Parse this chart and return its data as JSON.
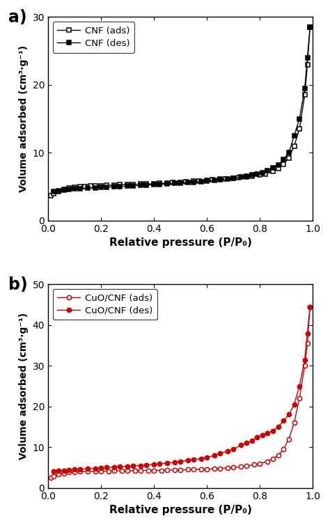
{
  "panel_a_label": "a)",
  "panel_b_label": "b)",
  "cnf_ads_x": [
    0.01,
    0.02,
    0.04,
    0.06,
    0.08,
    0.1,
    0.12,
    0.14,
    0.16,
    0.18,
    0.2,
    0.22,
    0.25,
    0.27,
    0.3,
    0.32,
    0.35,
    0.37,
    0.4,
    0.42,
    0.45,
    0.47,
    0.5,
    0.52,
    0.55,
    0.57,
    0.6,
    0.62,
    0.65,
    0.67,
    0.7,
    0.72,
    0.75,
    0.77,
    0.8,
    0.82,
    0.85,
    0.87,
    0.89,
    0.91,
    0.93,
    0.95,
    0.97,
    0.98,
    0.99
  ],
  "cnf_ads_y": [
    3.7,
    4.0,
    4.3,
    4.6,
    4.8,
    4.9,
    5.0,
    5.0,
    5.1,
    5.1,
    5.1,
    5.2,
    5.2,
    5.3,
    5.3,
    5.3,
    5.4,
    5.4,
    5.4,
    5.5,
    5.5,
    5.6,
    5.6,
    5.7,
    5.8,
    5.8,
    5.9,
    6.0,
    6.1,
    6.1,
    6.2,
    6.3,
    6.4,
    6.5,
    6.7,
    6.9,
    7.3,
    7.7,
    8.3,
    9.2,
    11.0,
    13.5,
    18.5,
    23.0,
    28.5
  ],
  "cnf_des_x": [
    0.99,
    0.98,
    0.97,
    0.95,
    0.93,
    0.91,
    0.89,
    0.87,
    0.85,
    0.83,
    0.81,
    0.79,
    0.77,
    0.75,
    0.73,
    0.7,
    0.68,
    0.65,
    0.63,
    0.6,
    0.58,
    0.55,
    0.53,
    0.5,
    0.48,
    0.45,
    0.42,
    0.4,
    0.37,
    0.35,
    0.32,
    0.3,
    0.27,
    0.25,
    0.22,
    0.2,
    0.18,
    0.15,
    0.12,
    0.1,
    0.08,
    0.06,
    0.04,
    0.02
  ],
  "cnf_des_y": [
    28.5,
    24.0,
    19.5,
    15.0,
    12.5,
    10.0,
    9.0,
    8.2,
    7.8,
    7.4,
    7.1,
    6.9,
    6.7,
    6.5,
    6.4,
    6.2,
    6.1,
    6.0,
    5.9,
    5.8,
    5.7,
    5.6,
    5.6,
    5.5,
    5.5,
    5.4,
    5.3,
    5.3,
    5.2,
    5.2,
    5.1,
    5.1,
    5.0,
    5.0,
    4.9,
    4.9,
    4.8,
    4.8,
    4.7,
    4.7,
    4.6,
    4.5,
    4.4,
    4.3
  ],
  "cuo_ads_x": [
    0.01,
    0.02,
    0.04,
    0.06,
    0.08,
    0.1,
    0.12,
    0.15,
    0.18,
    0.2,
    0.23,
    0.25,
    0.28,
    0.3,
    0.33,
    0.35,
    0.38,
    0.4,
    0.43,
    0.45,
    0.48,
    0.5,
    0.53,
    0.55,
    0.58,
    0.6,
    0.63,
    0.65,
    0.68,
    0.7,
    0.73,
    0.75,
    0.78,
    0.8,
    0.83,
    0.85,
    0.87,
    0.89,
    0.91,
    0.93,
    0.95,
    0.97,
    0.98,
    0.99
  ],
  "cuo_ads_y": [
    2.5,
    2.9,
    3.3,
    3.6,
    3.8,
    3.9,
    4.0,
    4.0,
    4.1,
    4.1,
    4.1,
    4.2,
    4.2,
    4.2,
    4.2,
    4.3,
    4.3,
    4.3,
    4.3,
    4.4,
    4.4,
    4.4,
    4.5,
    4.5,
    4.6,
    4.6,
    4.7,
    4.8,
    4.9,
    5.0,
    5.2,
    5.4,
    5.7,
    6.0,
    6.5,
    7.2,
    8.0,
    9.5,
    12.0,
    16.0,
    22.0,
    30.0,
    35.5,
    44.5
  ],
  "cuo_des_x": [
    0.99,
    0.98,
    0.97,
    0.95,
    0.93,
    0.91,
    0.89,
    0.87,
    0.85,
    0.83,
    0.81,
    0.79,
    0.77,
    0.75,
    0.73,
    0.7,
    0.68,
    0.65,
    0.63,
    0.6,
    0.58,
    0.55,
    0.53,
    0.5,
    0.48,
    0.45,
    0.42,
    0.4,
    0.37,
    0.35,
    0.32,
    0.3,
    0.27,
    0.25,
    0.22,
    0.2,
    0.18,
    0.15,
    0.12,
    0.1,
    0.08,
    0.06,
    0.04,
    0.02
  ],
  "cuo_des_y": [
    44.5,
    38.0,
    31.5,
    25.0,
    20.5,
    18.0,
    16.5,
    15.0,
    14.0,
    13.5,
    13.0,
    12.5,
    11.5,
    11.0,
    10.5,
    9.5,
    9.0,
    8.5,
    8.0,
    7.5,
    7.2,
    7.0,
    6.8,
    6.5,
    6.3,
    6.1,
    5.9,
    5.8,
    5.6,
    5.5,
    5.4,
    5.3,
    5.2,
    5.1,
    5.0,
    4.9,
    4.8,
    4.7,
    4.6,
    4.5,
    4.4,
    4.3,
    4.2,
    4.0
  ],
  "color_a": "#000000",
  "color_b": "#cc0000",
  "ylabel": "Volume adsorbed (cm³·g⁻¹)",
  "xlabel": "Relative pressure (P/P₀)",
  "ylim_a": [
    0,
    30
  ],
  "yticks_a": [
    0,
    10,
    20,
    30
  ],
  "ylim_b": [
    0,
    50
  ],
  "yticks_b": [
    0,
    10,
    20,
    30,
    40,
    50
  ],
  "xlim": [
    0.0,
    1.0
  ],
  "xticks": [
    0.0,
    0.2,
    0.4,
    0.6,
    0.8,
    1.0
  ],
  "legend_a": [
    "CNF (ads)",
    "CNF (des)"
  ],
  "legend_b": [
    "CuO/CNF (ads)",
    "CuO/CNF (des)"
  ]
}
